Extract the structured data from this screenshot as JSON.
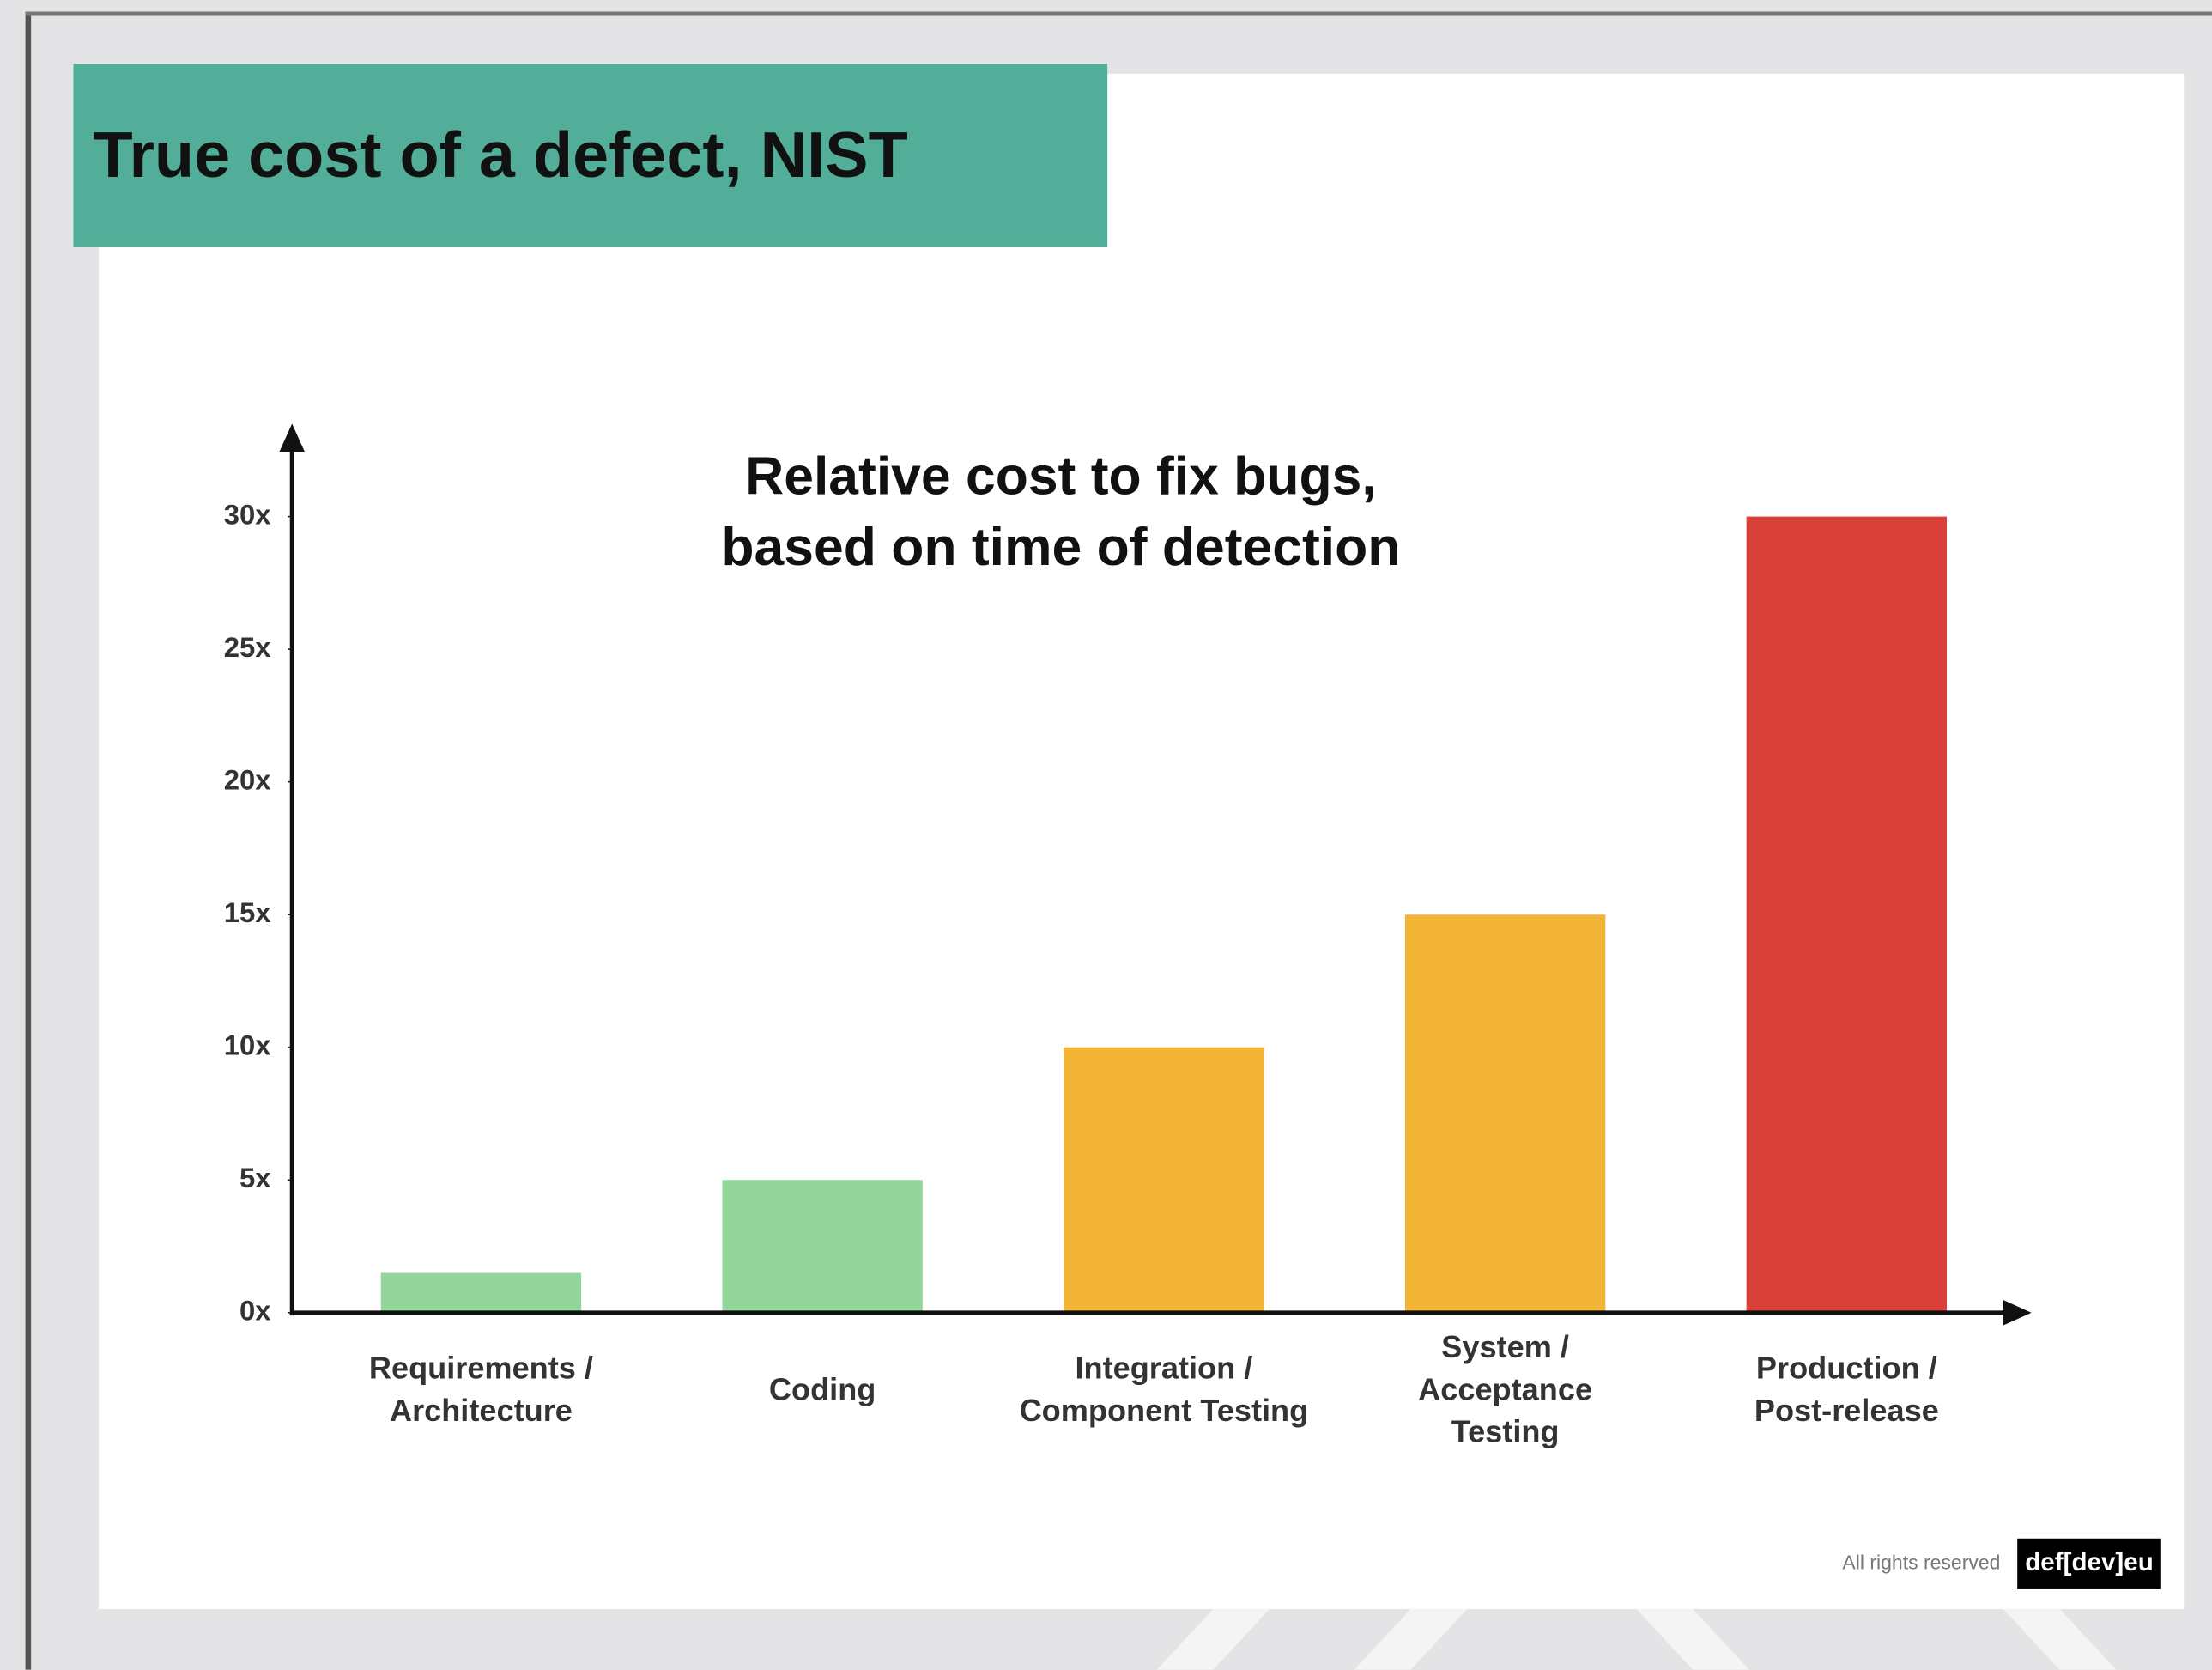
{
  "header": {
    "title": "True cost of a defect, NIST"
  },
  "chart_data": {
    "type": "bar",
    "title": [
      "Relative cost to fix bugs,",
      "based on time of detection"
    ],
    "categories": [
      [
        "Requirements /",
        "Architecture"
      ],
      [
        "Coding"
      ],
      [
        "Integration /",
        "Component Testing"
      ],
      [
        "System /",
        "Acceptance",
        "Testing"
      ],
      [
        "Production /",
        "Post-release"
      ]
    ],
    "values": [
      1.5,
      5,
      10,
      15,
      30
    ],
    "colors": [
      "#93d59a",
      "#93d59a",
      "#f2b435",
      "#f2b435",
      "#d9403a"
    ],
    "ylim": [
      0,
      33.5
    ],
    "yticks": [
      {
        "value": 0,
        "label": "0x"
      },
      {
        "value": 5,
        "label": "5x"
      },
      {
        "value": 10,
        "label": "10x"
      },
      {
        "value": 15,
        "label": "15x"
      },
      {
        "value": 20,
        "label": "20x"
      },
      {
        "value": 25,
        "label": "25x"
      },
      {
        "value": 30,
        "label": "30x"
      }
    ],
    "grid": false
  },
  "footer": {
    "rights": "All rights reserved",
    "logo": "def[dev]eu"
  }
}
